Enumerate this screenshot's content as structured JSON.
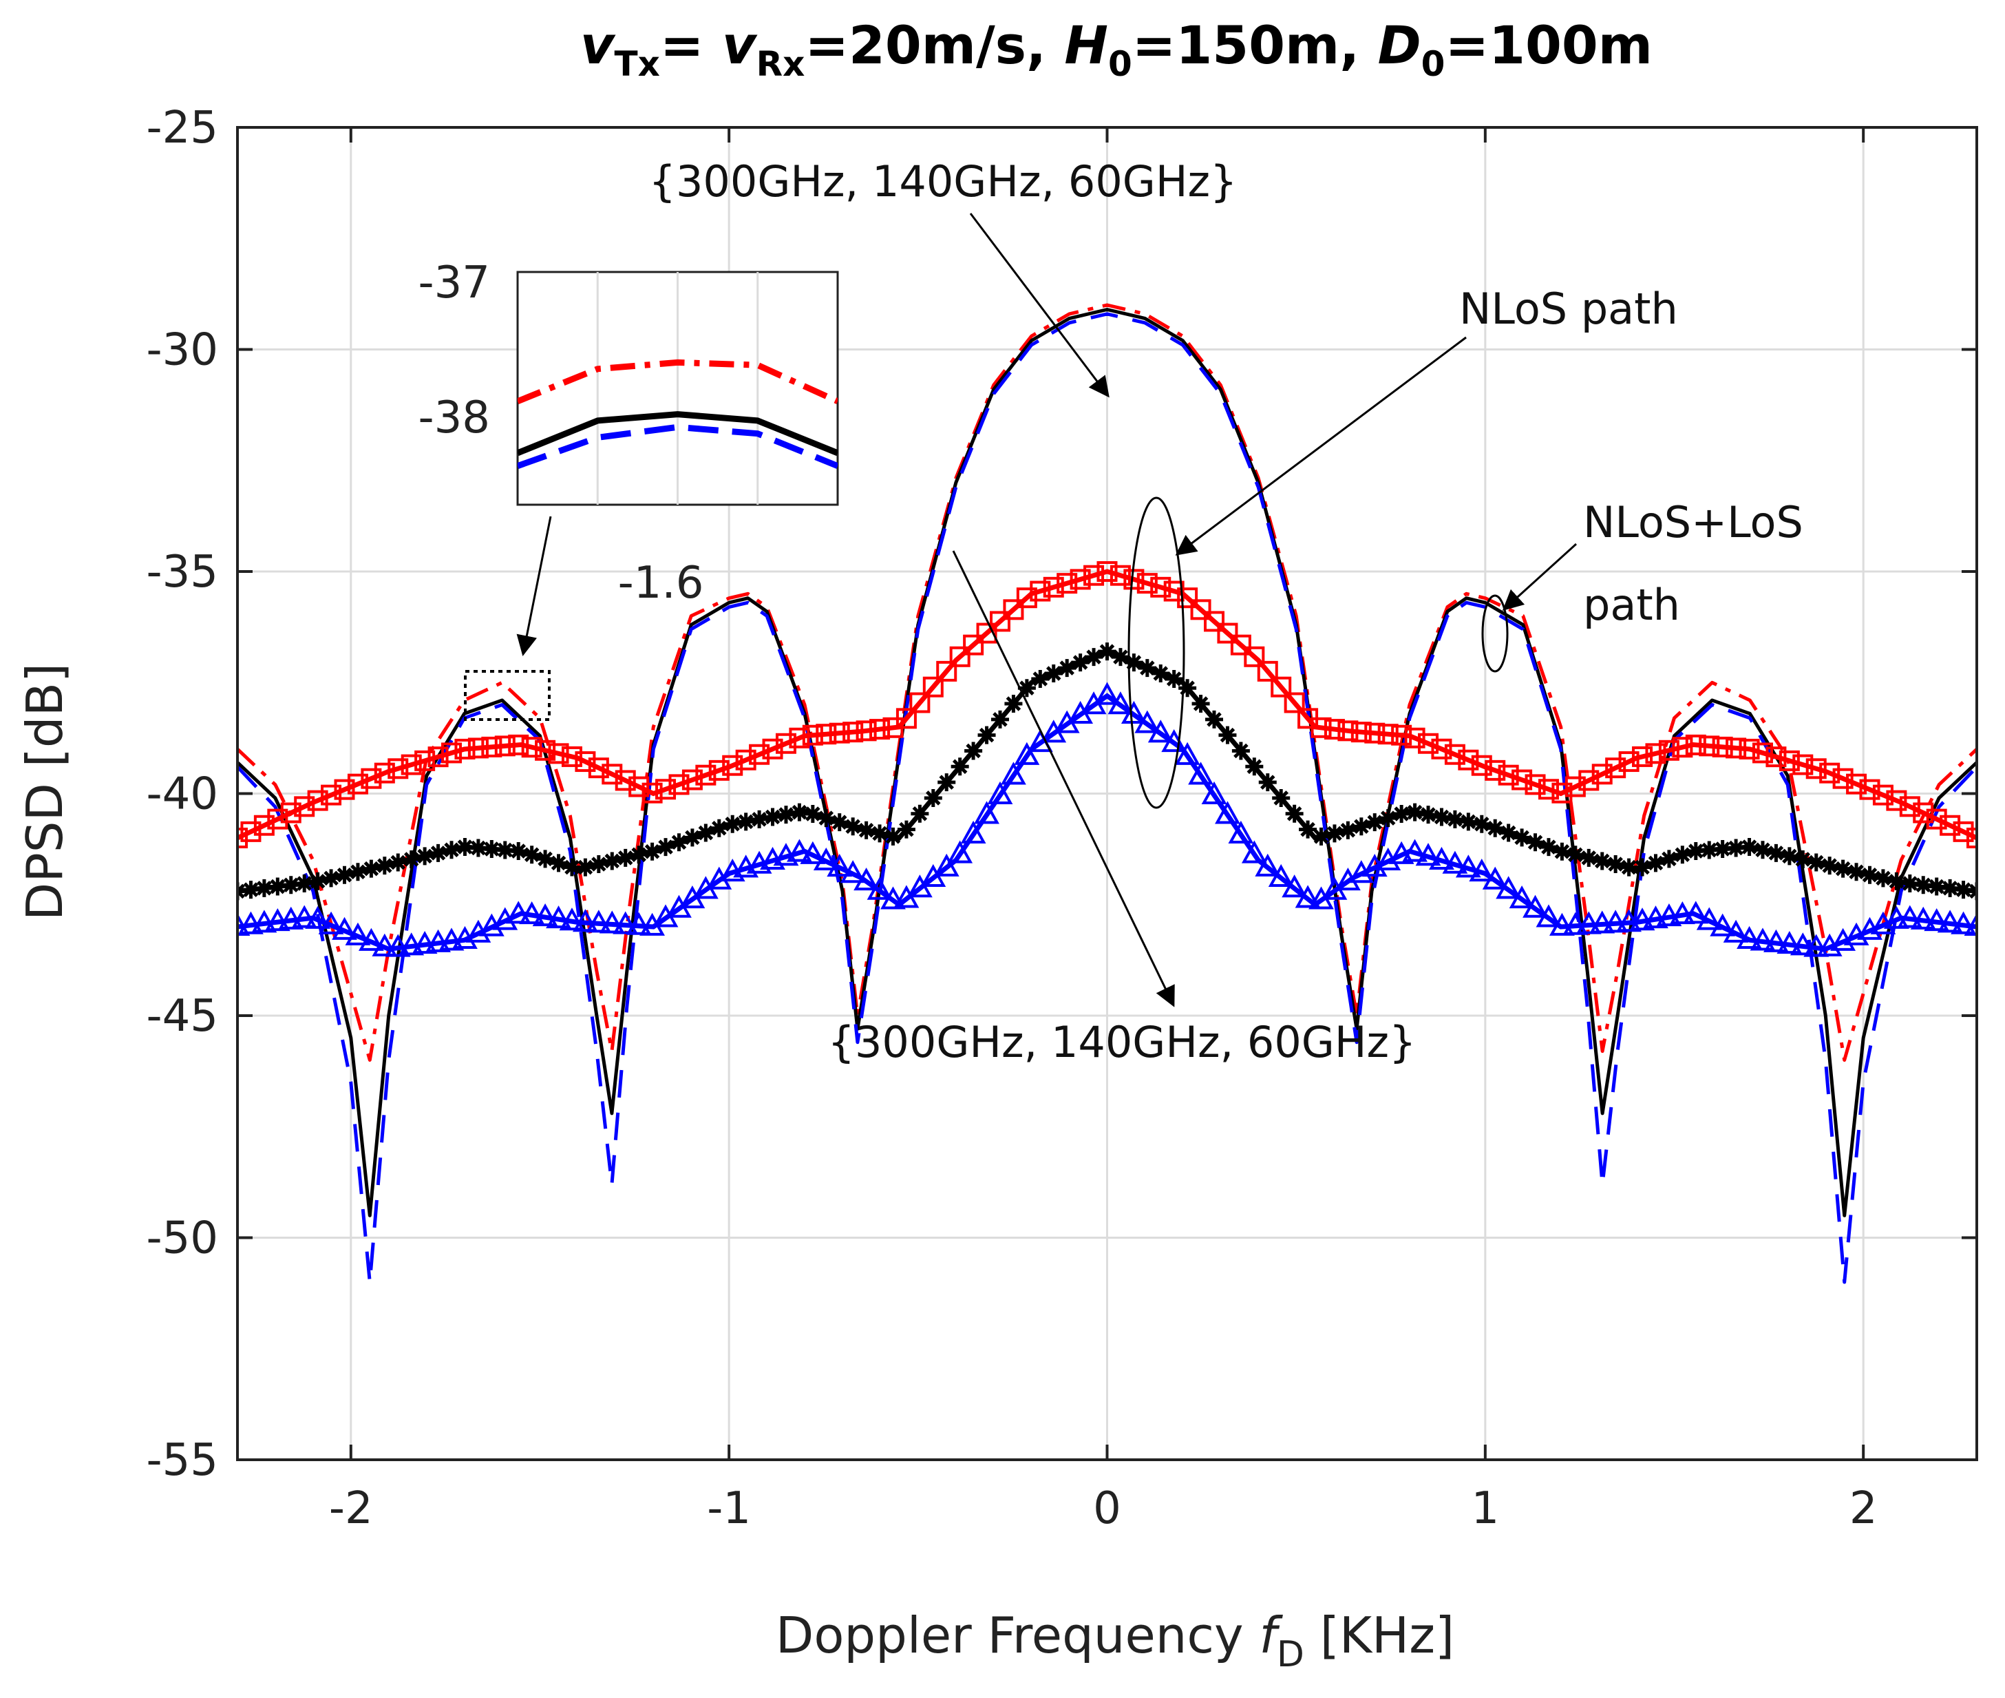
{
  "title": {
    "v1": "v",
    "s1": "Tx",
    "eq1": "= ",
    "v2": "v",
    "s2": "Rx",
    "eq2": "=20m/s,  ",
    "h": "H",
    "hs": "0",
    "heq": "=150m,  ",
    "d": "D",
    "ds": "0",
    "deq": "=100m"
  },
  "xlabel": {
    "pre": "Doppler Frequency  ",
    "f": "f",
    "sub": "D",
    "post": " [KHz]"
  },
  "ylabel": "DPSD [dB]",
  "annotations": {
    "top_freqs": "{300GHz, 140GHz, 60GHz}",
    "bottom_freqs": "{300GHz, 140GHz, 60GHz}",
    "nlos": "NLoS path",
    "nlos_los_1": "NLoS+LoS",
    "nlos_los_2": "path",
    "inset_x": "-1.6",
    "inset_y1": "-37",
    "inset_y2": "-38"
  },
  "colors": {
    "red": "#ff0000",
    "black": "#000000",
    "blue": "#0000ff"
  },
  "chart_data": {
    "type": "line",
    "xlim": [
      -2.3,
      2.3
    ],
    "ylim": [
      -55,
      -25
    ],
    "xticks": [
      -2,
      -1,
      0,
      1,
      2
    ],
    "xtick_labels": [
      "-2",
      "-1",
      "0",
      "1",
      "2"
    ],
    "yticks": [
      -55,
      -50,
      -45,
      -40,
      -35,
      -30,
      -25
    ],
    "ytick_labels": [
      "-55",
      "-50",
      "-45",
      "-40",
      "-35",
      "-30",
      "-25"
    ],
    "grid": true,
    "series": [
      {
        "name": "NLoS+LoS 300GHz",
        "style": "dashdot",
        "color": "red",
        "x": [
          -2.3,
          -2.2,
          -2.1,
          -2.0,
          -1.95,
          -1.9,
          -1.8,
          -1.7,
          -1.6,
          -1.5,
          -1.42,
          -1.35,
          -1.31,
          -1.27,
          -1.2,
          -1.1,
          -1.0,
          -0.95,
          -0.9,
          -0.8,
          -0.7,
          -0.66,
          -0.62,
          -0.5,
          -0.4,
          -0.3,
          -0.2,
          -0.1,
          0,
          0.1,
          0.2,
          0.3,
          0.4,
          0.5,
          0.62,
          0.66,
          0.7,
          0.8,
          0.9,
          0.95,
          1.0,
          1.1,
          1.2,
          1.27,
          1.31,
          1.35,
          1.42,
          1.5,
          1.6,
          1.7,
          1.8,
          1.9,
          1.95,
          2.0,
          2.1,
          2.2,
          2.3
        ],
        "y": [
          -39.0,
          -39.8,
          -41.5,
          -44.5,
          -46.0,
          -43.5,
          -39.2,
          -37.9,
          -37.5,
          -38.3,
          -40.5,
          -44.0,
          -45.8,
          -43.0,
          -38.5,
          -36.0,
          -35.6,
          -35.5,
          -35.8,
          -38.0,
          -42.0,
          -45.0,
          -43.0,
          -36.0,
          -32.9,
          -30.8,
          -29.7,
          -29.2,
          -29.0,
          -29.2,
          -29.7,
          -30.8,
          -32.9,
          -36.0,
          -43.0,
          -45.0,
          -42.0,
          -38.0,
          -35.8,
          -35.5,
          -35.6,
          -36.0,
          -38.5,
          -43.0,
          -45.8,
          -44.0,
          -40.5,
          -38.3,
          -37.5,
          -37.9,
          -39.2,
          -43.5,
          -46.0,
          -44.5,
          -41.5,
          -39.8,
          -39.0
        ]
      },
      {
        "name": "NLoS+LoS 140GHz",
        "style": "solid",
        "color": "black",
        "x": [
          -2.3,
          -2.2,
          -2.1,
          -2.0,
          -1.95,
          -1.9,
          -1.8,
          -1.7,
          -1.6,
          -1.5,
          -1.42,
          -1.35,
          -1.31,
          -1.27,
          -1.2,
          -1.1,
          -1.0,
          -0.95,
          -0.9,
          -0.8,
          -0.7,
          -0.66,
          -0.62,
          -0.5,
          -0.4,
          -0.3,
          -0.2,
          -0.1,
          0,
          0.1,
          0.2,
          0.3,
          0.4,
          0.5,
          0.62,
          0.66,
          0.7,
          0.8,
          0.9,
          0.95,
          1.0,
          1.1,
          1.2,
          1.27,
          1.31,
          1.35,
          1.42,
          1.5,
          1.6,
          1.7,
          1.8,
          1.9,
          1.95,
          2.0,
          2.1,
          2.2,
          2.3
        ],
        "y": [
          -39.3,
          -40.1,
          -41.9,
          -45.5,
          -49.5,
          -45.0,
          -39.6,
          -38.2,
          -37.9,
          -38.7,
          -41.0,
          -45.0,
          -47.2,
          -44.0,
          -38.9,
          -36.2,
          -35.7,
          -35.6,
          -35.9,
          -38.2,
          -42.2,
          -45.3,
          -43.2,
          -36.2,
          -33.0,
          -30.9,
          -29.8,
          -29.3,
          -29.1,
          -29.3,
          -29.8,
          -30.9,
          -33.0,
          -36.2,
          -43.2,
          -45.3,
          -42.2,
          -38.2,
          -35.9,
          -35.6,
          -35.7,
          -36.2,
          -38.9,
          -44.0,
          -47.2,
          -45.0,
          -41.0,
          -38.7,
          -37.9,
          -38.2,
          -39.6,
          -45.0,
          -49.5,
          -45.5,
          -41.9,
          -40.1,
          -39.3
        ]
      },
      {
        "name": "NLoS+LoS 60GHz",
        "style": "dashed",
        "color": "blue",
        "x": [
          -2.3,
          -2.2,
          -2.1,
          -2.0,
          -1.95,
          -1.9,
          -1.8,
          -1.7,
          -1.6,
          -1.5,
          -1.42,
          -1.35,
          -1.31,
          -1.27,
          -1.2,
          -1.1,
          -1.0,
          -0.95,
          -0.9,
          -0.8,
          -0.7,
          -0.66,
          -0.62,
          -0.5,
          -0.4,
          -0.3,
          -0.2,
          -0.1,
          0,
          0.1,
          0.2,
          0.3,
          0.4,
          0.5,
          0.62,
          0.66,
          0.7,
          0.8,
          0.9,
          0.95,
          1.0,
          1.1,
          1.2,
          1.27,
          1.31,
          1.35,
          1.42,
          1.5,
          1.6,
          1.7,
          1.8,
          1.9,
          1.95,
          2.0,
          2.1,
          2.2,
          2.3
        ],
        "y": [
          -39.4,
          -40.3,
          -42.2,
          -46.5,
          -51.0,
          -46.0,
          -39.8,
          -38.3,
          -38.0,
          -38.8,
          -41.3,
          -45.8,
          -48.8,
          -44.8,
          -39.0,
          -36.3,
          -35.8,
          -35.7,
          -36.0,
          -38.3,
          -42.4,
          -45.6,
          -43.4,
          -36.3,
          -33.1,
          -31.0,
          -29.9,
          -29.4,
          -29.2,
          -29.4,
          -29.9,
          -31.0,
          -33.1,
          -36.3,
          -43.4,
          -45.6,
          -42.4,
          -38.3,
          -36.0,
          -35.7,
          -35.8,
          -36.3,
          -39.0,
          -44.8,
          -48.8,
          -45.8,
          -41.3,
          -38.8,
          -38.0,
          -38.3,
          -39.8,
          -46.0,
          -51.0,
          -46.5,
          -42.2,
          -40.3,
          -39.4
        ]
      },
      {
        "name": "NLoS 300GHz",
        "style": "marker-square",
        "color": "red",
        "x": [
          -2.3,
          -2.1,
          -1.9,
          -1.7,
          -1.55,
          -1.4,
          -1.2,
          -1.0,
          -0.8,
          -0.65,
          -0.55,
          -0.4,
          -0.2,
          0,
          0.2,
          0.4,
          0.55,
          0.65,
          0.8,
          1.0,
          1.2,
          1.4,
          1.55,
          1.7,
          1.9,
          2.1,
          2.3
        ],
        "y": [
          -41.0,
          -40.2,
          -39.5,
          -39.0,
          -38.9,
          -39.2,
          -40.0,
          -39.4,
          -38.7,
          -38.6,
          -38.5,
          -37.0,
          -35.5,
          -35.0,
          -35.5,
          -37.0,
          -38.5,
          -38.6,
          -38.7,
          -39.4,
          -40.0,
          -39.2,
          -38.9,
          -39.0,
          -39.5,
          -40.2,
          -41.0
        ]
      },
      {
        "name": "NLoS 140GHz",
        "style": "marker-star",
        "color": "black",
        "x": [
          -2.3,
          -2.1,
          -1.9,
          -1.7,
          -1.55,
          -1.4,
          -1.2,
          -1.0,
          -0.8,
          -0.65,
          -0.55,
          -0.4,
          -0.2,
          0,
          0.2,
          0.4,
          0.55,
          0.65,
          0.8,
          1.0,
          1.2,
          1.4,
          1.55,
          1.7,
          1.9,
          2.1,
          2.3
        ],
        "y": [
          -42.2,
          -42.0,
          -41.6,
          -41.2,
          -41.3,
          -41.7,
          -41.3,
          -40.7,
          -40.4,
          -40.8,
          -41.0,
          -39.5,
          -37.5,
          -36.8,
          -37.5,
          -39.5,
          -41.0,
          -40.8,
          -40.4,
          -40.7,
          -41.3,
          -41.7,
          -41.3,
          -41.2,
          -41.6,
          -42.0,
          -42.2
        ]
      },
      {
        "name": "NLoS 60GHz",
        "style": "marker-triangle",
        "color": "blue",
        "x": [
          -2.3,
          -2.1,
          -1.9,
          -1.7,
          -1.55,
          -1.4,
          -1.2,
          -1.0,
          -0.8,
          -0.65,
          -0.55,
          -0.4,
          -0.2,
          0,
          0.2,
          0.4,
          0.55,
          0.65,
          0.8,
          1.0,
          1.2,
          1.4,
          1.55,
          1.7,
          1.9,
          2.1,
          2.3
        ],
        "y": [
          -43.0,
          -42.8,
          -43.5,
          -43.3,
          -42.7,
          -42.9,
          -43.0,
          -41.8,
          -41.3,
          -41.9,
          -42.5,
          -41.5,
          -39.0,
          -37.8,
          -39.0,
          -41.5,
          -42.5,
          -41.9,
          -41.3,
          -41.8,
          -43.0,
          -42.9,
          -42.7,
          -43.3,
          -43.5,
          -42.8,
          -43.0
        ]
      }
    ],
    "inset": {
      "xlim": [
        -1.7,
        -1.5
      ],
      "ylim": [
        -38.6,
        -36.8
      ],
      "series": [
        {
          "name": "300GHz",
          "style": "dashdot",
          "color": "red",
          "x": [
            -1.7,
            -1.65,
            -1.6,
            -1.55,
            -1.5
          ],
          "y": [
            -37.8,
            -37.55,
            -37.5,
            -37.52,
            -37.8
          ]
        },
        {
          "name": "140GHz",
          "style": "solid",
          "color": "black",
          "x": [
            -1.7,
            -1.65,
            -1.6,
            -1.55,
            -1.5
          ],
          "y": [
            -38.2,
            -37.95,
            -37.9,
            -37.95,
            -38.2
          ]
        },
        {
          "name": "60GHz",
          "style": "dashed",
          "color": "blue",
          "x": [
            -1.7,
            -1.65,
            -1.6,
            -1.55,
            -1.5
          ],
          "y": [
            -38.3,
            -38.08,
            -38.0,
            -38.05,
            -38.3
          ]
        }
      ]
    }
  }
}
